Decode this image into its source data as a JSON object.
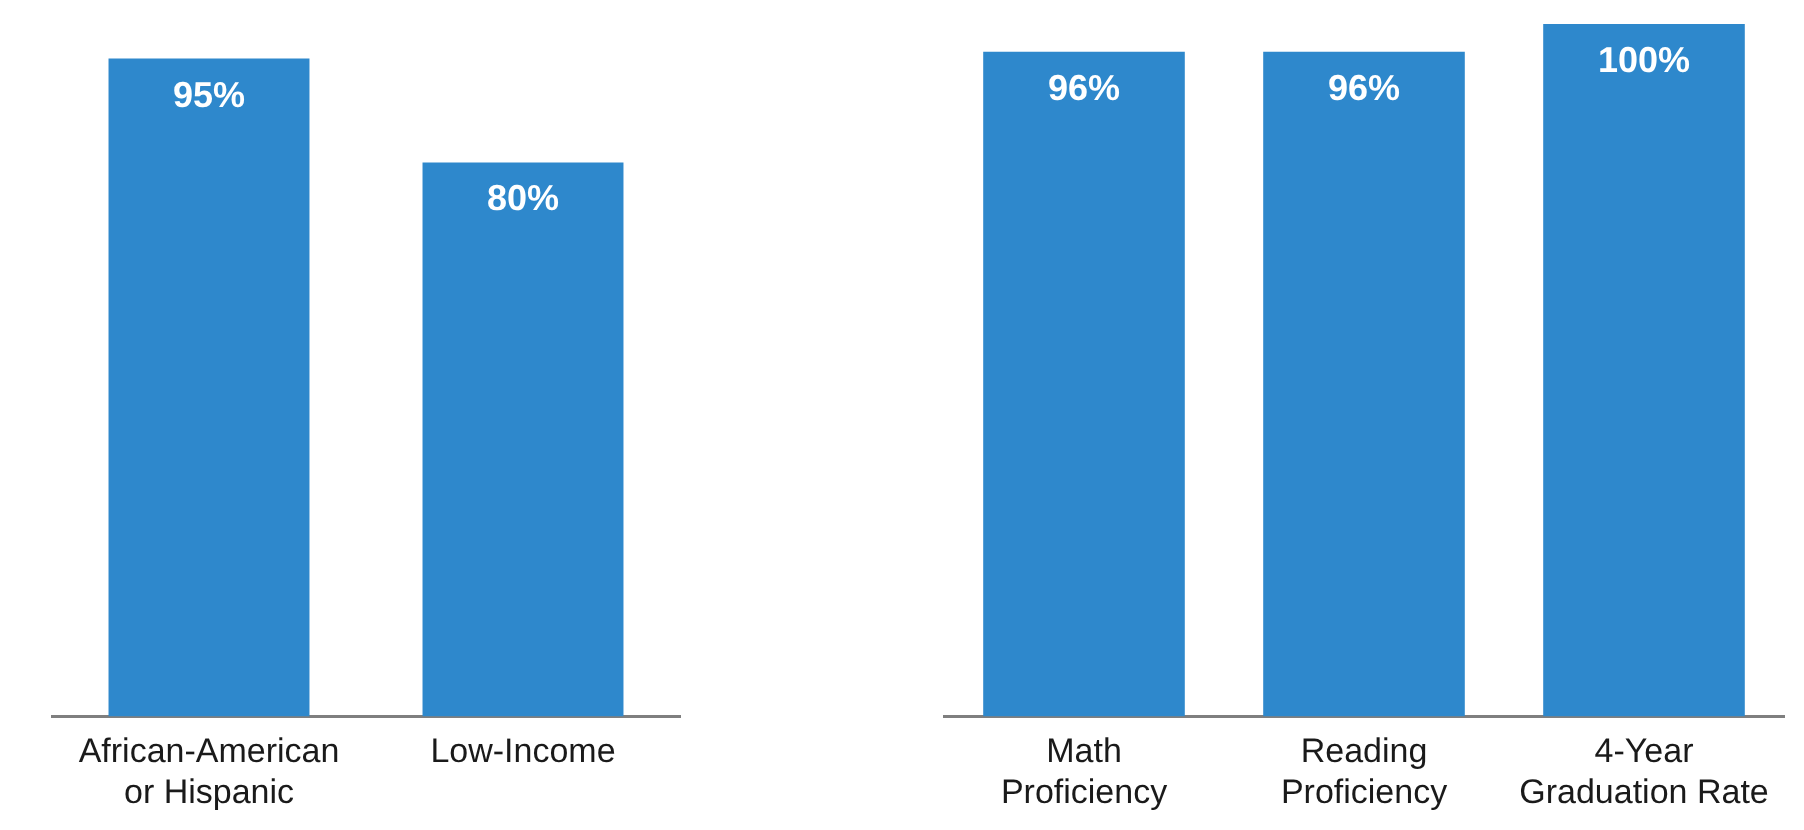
{
  "chart_data": [
    {
      "type": "bar",
      "categories": [
        "African-American or Hispanic",
        "Low-Income"
      ],
      "values": [
        95,
        80
      ],
      "value_labels": [
        "95%",
        "80%"
      ],
      "color": "#2e88cc"
    },
    {
      "type": "bar",
      "categories": [
        "Math Proficiency",
        "Reading Proficiency",
        "4-Year Graduation Rate"
      ],
      "values": [
        96,
        96,
        100
      ],
      "value_labels": [
        "96%",
        "96%",
        "100%"
      ],
      "color": "#2e88cc"
    }
  ]
}
